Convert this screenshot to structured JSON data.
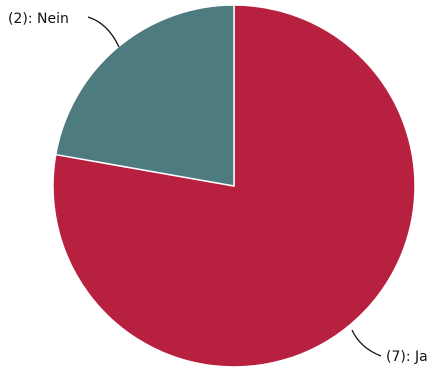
{
  "chart_data": {
    "type": "pie",
    "slices": [
      {
        "label": "Ja",
        "count_label": "(7): Ja",
        "value": 7,
        "color": "#b82040"
      },
      {
        "label": "Nein",
        "count_label": "(2): Nein",
        "value": 2,
        "color": "#4e7b80"
      }
    ],
    "start": "top",
    "direction": "clockwise",
    "slice_border_color": "#ffffff",
    "legend": "none"
  }
}
